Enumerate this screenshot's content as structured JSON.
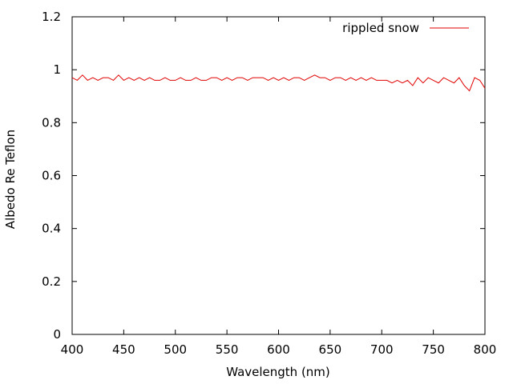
{
  "chart_data": {
    "type": "line",
    "xlabel": "Wavelength (nm)",
    "ylabel": "Albedo Re Teflon",
    "xlim": [
      400,
      800
    ],
    "ylim": [
      0,
      1.2
    ],
    "xticks": [
      "400",
      "450",
      "500",
      "550",
      "600",
      "650",
      "700",
      "750",
      "800"
    ],
    "yticks": [
      "0",
      "0.2",
      "0.4",
      "0.6",
      "0.8",
      "1",
      "1.2"
    ],
    "grid": false,
    "legend_position": "top-right",
    "series": [
      {
        "name": "rippled snow",
        "color": "#e00000",
        "x": [
          400,
          405,
          410,
          415,
          420,
          425,
          430,
          435,
          440,
          445,
          450,
          455,
          460,
          465,
          470,
          475,
          480,
          485,
          490,
          495,
          500,
          505,
          510,
          515,
          520,
          525,
          530,
          535,
          540,
          545,
          550,
          555,
          560,
          565,
          570,
          575,
          580,
          585,
          590,
          595,
          600,
          605,
          610,
          615,
          620,
          625,
          630,
          635,
          640,
          645,
          650,
          655,
          660,
          665,
          670,
          675,
          680,
          685,
          690,
          695,
          700,
          705,
          710,
          715,
          720,
          725,
          730,
          735,
          740,
          745,
          750,
          755,
          760,
          765,
          770,
          775,
          780,
          785,
          790,
          795,
          800
        ],
        "values": [
          0.97,
          0.96,
          0.98,
          0.96,
          0.97,
          0.96,
          0.97,
          0.97,
          0.96,
          0.98,
          0.96,
          0.97,
          0.96,
          0.97,
          0.96,
          0.97,
          0.96,
          0.96,
          0.97,
          0.96,
          0.96,
          0.97,
          0.96,
          0.96,
          0.97,
          0.96,
          0.96,
          0.97,
          0.97,
          0.96,
          0.97,
          0.96,
          0.97,
          0.97,
          0.96,
          0.97,
          0.97,
          0.97,
          0.96,
          0.97,
          0.96,
          0.97,
          0.96,
          0.97,
          0.97,
          0.96,
          0.97,
          0.98,
          0.97,
          0.97,
          0.96,
          0.97,
          0.97,
          0.96,
          0.97,
          0.96,
          0.97,
          0.96,
          0.97,
          0.96,
          0.96,
          0.96,
          0.95,
          0.96,
          0.95,
          0.96,
          0.94,
          0.97,
          0.95,
          0.97,
          0.96,
          0.95,
          0.97,
          0.96,
          0.95,
          0.97,
          0.94,
          0.92,
          0.97,
          0.96,
          0.93
        ]
      }
    ]
  }
}
